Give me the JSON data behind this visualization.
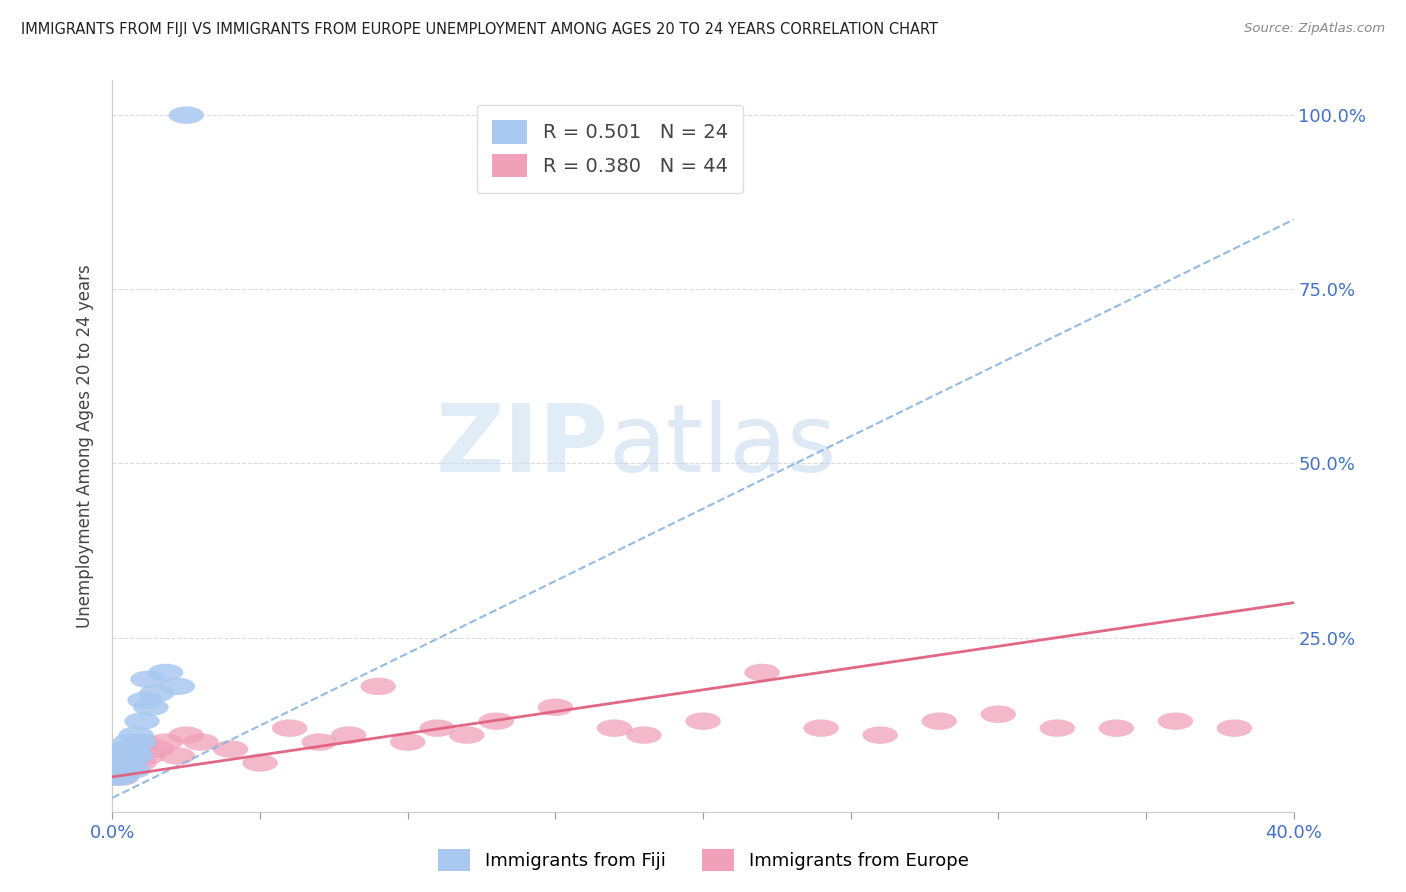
{
  "title": "IMMIGRANTS FROM FIJI VS IMMIGRANTS FROM EUROPE UNEMPLOYMENT AMONG AGES 20 TO 24 YEARS CORRELATION CHART",
  "source": "Source: ZipAtlas.com",
  "ylabel": "Unemployment Among Ages 20 to 24 years",
  "xlim": [
    0.0,
    0.4
  ],
  "ylim": [
    0.0,
    1.05
  ],
  "xticks": [
    0.0,
    0.05,
    0.1,
    0.15,
    0.2,
    0.25,
    0.3,
    0.35,
    0.4
  ],
  "fiji_color": "#a8c8f0",
  "europe_color": "#f0a0b8",
  "fiji_trend_color": "#8ab4e0",
  "europe_trend_color": "#e06080",
  "watermark_zip": "ZIP",
  "watermark_atlas": "atlas",
  "legend_fiji": "R = 0.501   N = 24",
  "legend_europe": "R = 0.380   N = 44",
  "legend_fiji_label": "Immigrants from Fiji",
  "legend_europe_label": "Immigrants from Europe",
  "fiji_x": [
    0.001,
    0.002,
    0.002,
    0.003,
    0.003,
    0.004,
    0.004,
    0.005,
    0.005,
    0.006,
    0.006,
    0.007,
    0.007,
    0.008,
    0.008,
    0.009,
    0.01,
    0.011,
    0.012,
    0.013,
    0.015,
    0.018,
    0.022,
    0.025
  ],
  "fiji_y": [
    0.05,
    0.06,
    0.08,
    0.05,
    0.07,
    0.06,
    0.08,
    0.07,
    0.09,
    0.08,
    0.1,
    0.06,
    0.09,
    0.08,
    0.11,
    0.1,
    0.13,
    0.16,
    0.19,
    0.15,
    0.17,
    0.2,
    0.18,
    1.0
  ],
  "europe_x": [
    0.001,
    0.002,
    0.002,
    0.003,
    0.003,
    0.004,
    0.004,
    0.005,
    0.005,
    0.006,
    0.006,
    0.007,
    0.008,
    0.009,
    0.01,
    0.012,
    0.015,
    0.018,
    0.022,
    0.025,
    0.03,
    0.04,
    0.05,
    0.06,
    0.07,
    0.08,
    0.09,
    0.1,
    0.11,
    0.12,
    0.13,
    0.15,
    0.17,
    0.18,
    0.2,
    0.22,
    0.24,
    0.26,
    0.28,
    0.3,
    0.32,
    0.34,
    0.36,
    0.38
  ],
  "europe_y": [
    0.05,
    0.06,
    0.07,
    0.05,
    0.08,
    0.06,
    0.07,
    0.08,
    0.06,
    0.09,
    0.07,
    0.08,
    0.09,
    0.07,
    0.1,
    0.08,
    0.09,
    0.1,
    0.08,
    0.11,
    0.1,
    0.09,
    0.07,
    0.12,
    0.1,
    0.11,
    0.18,
    0.1,
    0.12,
    0.11,
    0.13,
    0.15,
    0.12,
    0.11,
    0.13,
    0.2,
    0.12,
    0.11,
    0.13,
    0.14,
    0.12,
    0.12,
    0.13,
    0.12
  ],
  "fiji_trend_x0": 0.0,
  "fiji_trend_y0": 0.02,
  "fiji_trend_x1": 0.4,
  "fiji_trend_y1": 0.85,
  "europe_trend_x0": 0.0,
  "europe_trend_y0": 0.05,
  "europe_trend_x1": 0.4,
  "europe_trend_y1": 0.3
}
